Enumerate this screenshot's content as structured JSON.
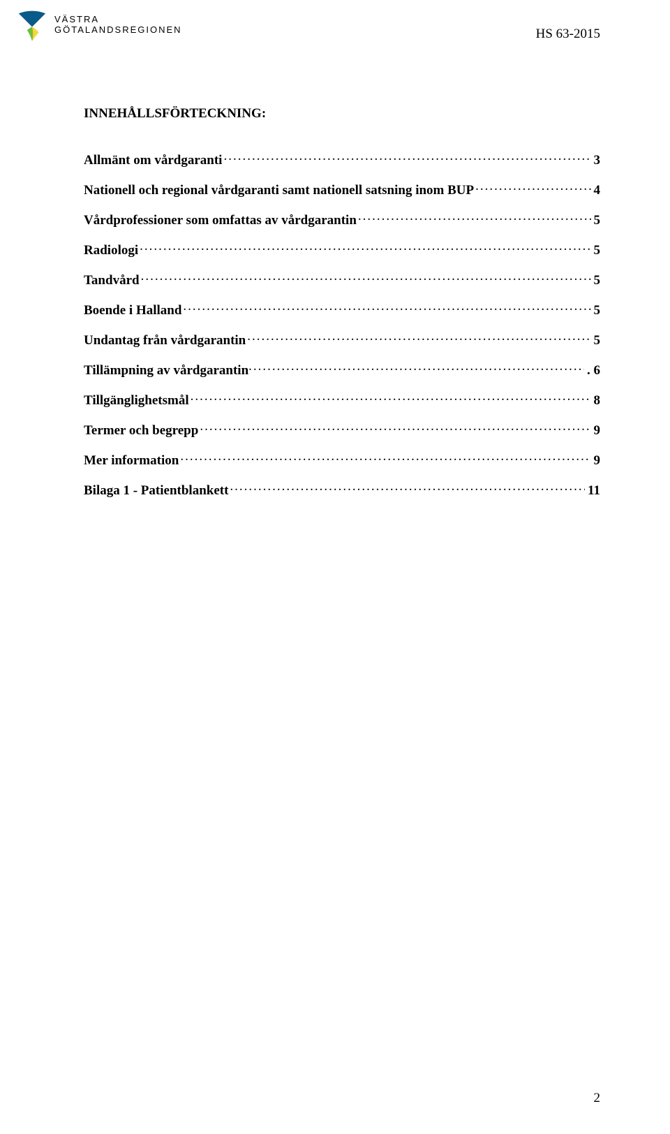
{
  "header": {
    "logo_line1": "VÄSTRA",
    "logo_line2": "GÖTALANDSREGIONEN",
    "doc_ref": "HS 63-2015",
    "logo_colors": {
      "blue": "#0a5a8a",
      "green": "#6fbf3f",
      "yellow": "#f6d63a"
    }
  },
  "toc": {
    "title": "INNEHÅLLSFÖRTECKNING:",
    "entries": [
      {
        "label": "Allmänt om vårdgaranti",
        "page": "3",
        "trailing": false
      },
      {
        "label": "Nationell och regional vårdgaranti samt nationell satsning inom BUP",
        "page": "4",
        "trailing": false
      },
      {
        "label": "Vårdprofessioner som omfattas av vårdgarantin",
        "page": "5",
        "trailing": false
      },
      {
        "label": "Radiologi",
        "page": "5",
        "trailing": false
      },
      {
        "label": "Tandvård",
        "page": "5",
        "trailing": false
      },
      {
        "label": "Boende i Halland",
        "page": "5",
        "trailing": false
      },
      {
        "label": "Undantag från vårdgarantin",
        "page": "5",
        "trailing": false
      },
      {
        "label": "Tillämpning av vårdgarantin",
        "page": ". 6",
        "trailing": true
      },
      {
        "label": "Tillgänglighetsmål",
        "page": "8",
        "trailing": false
      },
      {
        "label": "Termer och begrepp",
        "page": "9",
        "trailing": false
      },
      {
        "label": "Mer information",
        "page": "9",
        "trailing": false
      },
      {
        "label": "Bilaga 1 - Patientblankett",
        "page": "11",
        "trailing": false
      }
    ]
  },
  "footer": {
    "page_number": "2"
  }
}
